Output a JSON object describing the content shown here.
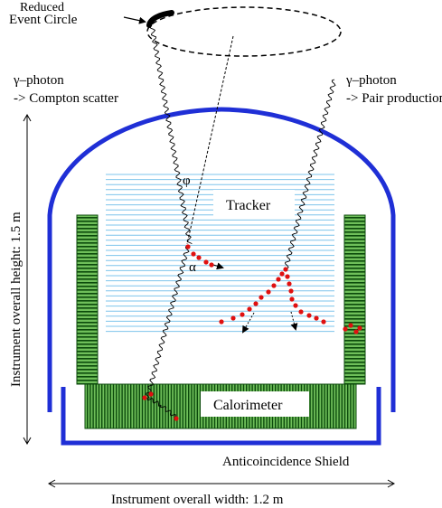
{
  "labels": {
    "reduced": "Reduced",
    "event_circle": "Event Circle",
    "photon_left_1": "γ–photon",
    "photon_left_2": "-> Compton scatter",
    "photon_right_1": "γ–photon",
    "photon_right_2": "-> Pair production",
    "height": "Instrument overall height: 1.5 m",
    "width": "Instrument overall width: 1.2 m",
    "tracker": "Tracker",
    "calorimeter": "Calorimeter",
    "shield": "Anticoincidence Shield",
    "phi": "φ",
    "alpha": "α"
  },
  "colors": {
    "shield": "#1f2fd6",
    "tracker_lines": "#7ec4ec",
    "green_dark": "#0b4a0b",
    "green_light": "#6fbf5a",
    "hits": "#e01010"
  }
}
